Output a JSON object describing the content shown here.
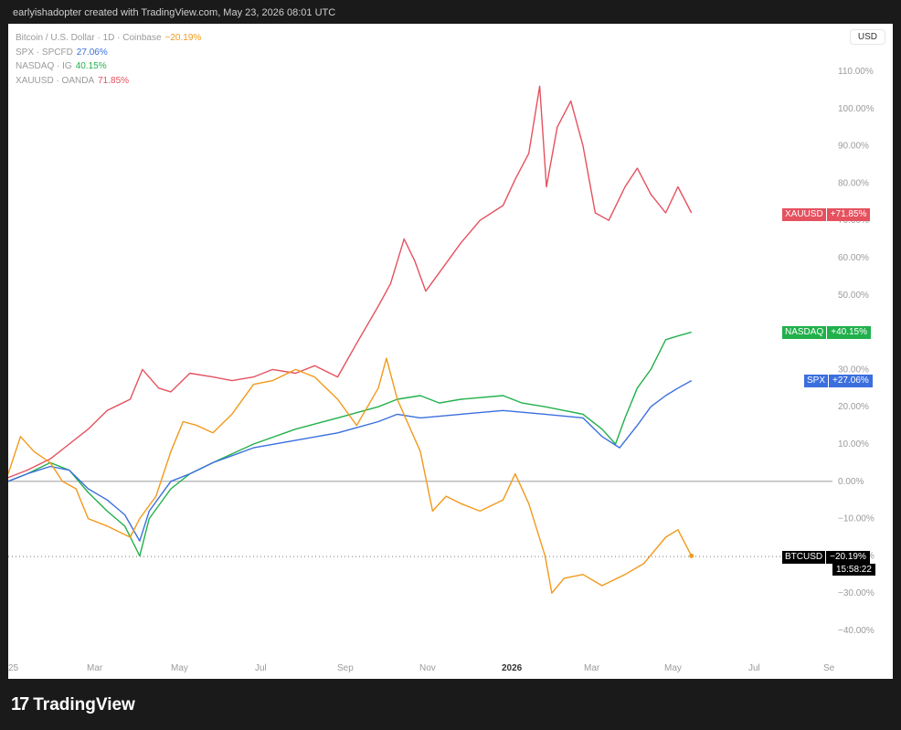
{
  "header": {
    "attribution": "earlyishadopter created with TradingView.com, May 23, 2026 08:01 UTC"
  },
  "legend": [
    {
      "name": "Bitcoin / U.S. Dollar · 1D · Coinbase",
      "value": "−20.19%",
      "color": "#f2991a"
    },
    {
      "name": "SPX · SPCFD",
      "value": "27.06%",
      "color": "#3b6fde"
    },
    {
      "name": "NASDAQ · IG",
      "value": "40.15%",
      "color": "#21b04b"
    },
    {
      "name": "XAUUSD · OANDA",
      "value": "71.85%",
      "color": "#e5515f"
    }
  ],
  "currency": "USD",
  "tags": {
    "xauusd": {
      "name": "XAUUSD",
      "value": "+71.85%",
      "color": "#e5515f"
    },
    "nasdaq": {
      "name": "NASDAQ",
      "value": "+40.15%",
      "color": "#21b04b"
    },
    "spx": {
      "name": "SPX",
      "value": "+27.06%",
      "color": "#3b6fde"
    },
    "btc": {
      "name": "BTCUSD",
      "value": "−20.19%",
      "color": "#000000",
      "countdown": "15:58:22"
    }
  },
  "footer": {
    "logo_mark": "17",
    "brand": "TradingView"
  },
  "chart_data": {
    "type": "line",
    "x_tick_labels": [
      "25",
      "Mar",
      "May",
      "Jul",
      "Sep",
      "Nov",
      "2026",
      "Mar",
      "May",
      "Jul",
      "Se"
    ],
    "x_domain": [
      "2025-01-01",
      "2026-09-01"
    ],
    "y_tick_labels": [
      "110.00%",
      "100.00%",
      "90.00%",
      "80.00%",
      "70.00%",
      "60.00%",
      "50.00%",
      "40.00%",
      "30.00%",
      "20.00%",
      "10.00%",
      "0.00%",
      "−10.00%",
      "−20.00%",
      "−30.00%",
      "−40.00%"
    ],
    "ylim": [
      -40,
      110
    ],
    "series": [
      {
        "name": "XAUUSD",
        "color": "#e5515f",
        "x": [
          "2025-01-01",
          "2025-01-15",
          "2025-02-01",
          "2025-02-15",
          "2025-03-01",
          "2025-03-15",
          "2025-04-01",
          "2025-04-10",
          "2025-04-22",
          "2025-05-01",
          "2025-05-15",
          "2025-06-01",
          "2025-06-15",
          "2025-07-01",
          "2025-07-15",
          "2025-08-01",
          "2025-08-15",
          "2025-09-01",
          "2025-09-15",
          "2025-10-01",
          "2025-10-10",
          "2025-10-20",
          "2025-10-28",
          "2025-11-05",
          "2025-11-15",
          "2025-12-01",
          "2025-12-15",
          "2026-01-01",
          "2026-01-10",
          "2026-01-20",
          "2026-01-28",
          "2026-02-02",
          "2026-02-10",
          "2026-02-20",
          "2026-03-01",
          "2026-03-10",
          "2026-03-20",
          "2026-03-28",
          "2026-04-01",
          "2026-04-10",
          "2026-04-20",
          "2026-05-01",
          "2026-05-10",
          "2026-05-20"
        ],
        "values": [
          1,
          3,
          6,
          10,
          14,
          19,
          22,
          30,
          25,
          24,
          29,
          28,
          27,
          28,
          30,
          29,
          31,
          28,
          37,
          47,
          53,
          65,
          59,
          51,
          56,
          64,
          70,
          74,
          81,
          88,
          106,
          79,
          95,
          102,
          90,
          72,
          70,
          76,
          79,
          84,
          77,
          72,
          79,
          72
        ]
      },
      {
        "name": "NASDAQ",
        "color": "#21b04b",
        "x": [
          "2025-01-01",
          "2025-01-15",
          "2025-02-01",
          "2025-02-15",
          "2025-03-01",
          "2025-03-15",
          "2025-03-28",
          "2025-04-08",
          "2025-04-15",
          "2025-05-01",
          "2025-05-15",
          "2025-06-01",
          "2025-07-01",
          "2025-08-01",
          "2025-09-01",
          "2025-10-01",
          "2025-10-15",
          "2025-11-01",
          "2025-11-15",
          "2025-12-01",
          "2026-01-01",
          "2026-01-15",
          "2026-02-01",
          "2026-02-15",
          "2026-03-01",
          "2026-03-15",
          "2026-03-25",
          "2026-04-01",
          "2026-04-10",
          "2026-04-20",
          "2026-05-01",
          "2026-05-10",
          "2026-05-20"
        ],
        "values": [
          0,
          2,
          5,
          3,
          -3,
          -8,
          -12,
          -20,
          -10,
          -2,
          2,
          5,
          10,
          14,
          17,
          20,
          22,
          23,
          21,
          22,
          23,
          21,
          20,
          19,
          18,
          14,
          10,
          17,
          25,
          30,
          38,
          39,
          40
        ]
      },
      {
        "name": "SPX",
        "color": "#3b6fde",
        "x": [
          "2025-01-01",
          "2025-01-15",
          "2025-02-01",
          "2025-02-15",
          "2025-03-01",
          "2025-03-15",
          "2025-03-28",
          "2025-04-08",
          "2025-04-15",
          "2025-05-01",
          "2025-05-15",
          "2025-06-01",
          "2025-07-01",
          "2025-08-01",
          "2025-09-01",
          "2025-10-01",
          "2025-10-15",
          "2025-11-01",
          "2025-12-01",
          "2026-01-01",
          "2026-02-01",
          "2026-03-01",
          "2026-03-15",
          "2026-03-28",
          "2026-04-10",
          "2026-04-20",
          "2026-05-01",
          "2026-05-10",
          "2026-05-20"
        ],
        "values": [
          0,
          2,
          4,
          3,
          -2,
          -5,
          -9,
          -16,
          -8,
          0,
          2,
          5,
          9,
          11,
          13,
          16,
          18,
          17,
          18,
          19,
          18,
          17,
          12,
          9,
          15,
          20,
          23,
          25,
          27
        ]
      },
      {
        "name": "BTCUSD",
        "color": "#f2991a",
        "x": [
          "2025-01-01",
          "2025-01-10",
          "2025-01-20",
          "2025-02-01",
          "2025-02-10",
          "2025-02-20",
          "2025-03-01",
          "2025-03-15",
          "2025-04-01",
          "2025-04-08",
          "2025-04-20",
          "2025-05-01",
          "2025-05-10",
          "2025-05-20",
          "2025-06-01",
          "2025-06-15",
          "2025-07-01",
          "2025-07-15",
          "2025-08-01",
          "2025-08-15",
          "2025-09-01",
          "2025-09-15",
          "2025-10-01",
          "2025-10-07",
          "2025-10-15",
          "2025-11-01",
          "2025-11-10",
          "2025-11-20",
          "2025-12-01",
          "2025-12-15",
          "2026-01-01",
          "2026-01-10",
          "2026-01-20",
          "2026-02-01",
          "2026-02-06",
          "2026-02-15",
          "2026-03-01",
          "2026-03-15",
          "2026-04-01",
          "2026-04-15",
          "2026-05-01",
          "2026-05-10",
          "2026-05-20"
        ],
        "values": [
          2,
          12,
          8,
          5,
          0,
          -2,
          -10,
          -12,
          -15,
          -10,
          -4,
          8,
          16,
          15,
          13,
          18,
          26,
          27,
          30,
          28,
          22,
          15,
          25,
          33,
          22,
          8,
          -8,
          -4,
          -6,
          -8,
          -5,
          2,
          -6,
          -20,
          -30,
          -26,
          -25,
          -28,
          -25,
          -22,
          -15,
          -13,
          -20
        ]
      }
    ]
  }
}
